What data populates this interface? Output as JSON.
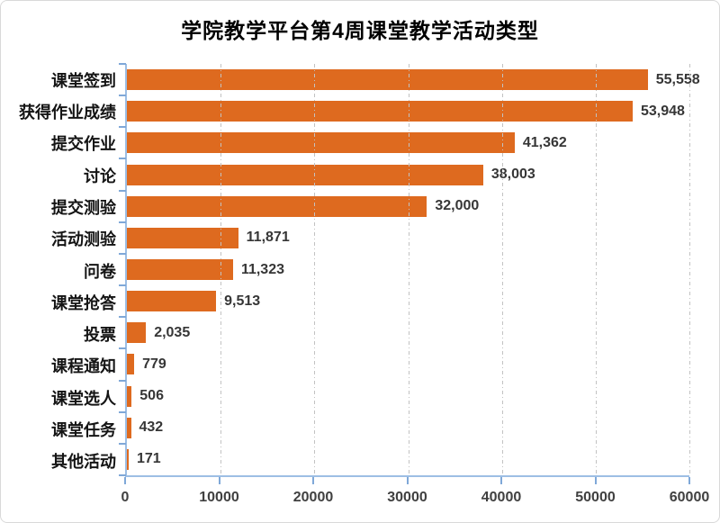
{
  "chart_data": {
    "type": "bar",
    "orientation": "horizontal",
    "title": "学院教学平台第4周课堂教学活动类型",
    "categories": [
      "课堂签到",
      "获得作业成绩",
      "提交作业",
      "讨论",
      "提交测验",
      "活动测验",
      "问卷",
      "课堂抢答",
      "投票",
      "课程通知",
      "课堂选人",
      "课堂任务",
      "其他活动"
    ],
    "values": [
      55558,
      53948,
      41362,
      38003,
      32000,
      11871,
      11323,
      9513,
      2035,
      779,
      506,
      432,
      171
    ],
    "value_labels": [
      "55,558",
      "53,948",
      "41,362",
      "38,003",
      "32,000",
      "11,871",
      "11,323",
      "9,513",
      "2,035",
      "779",
      "506",
      "432",
      "171"
    ],
    "x_axis": {
      "min": 0,
      "max": 60000,
      "ticks": [
        0,
        10000,
        20000,
        30000,
        40000,
        50000,
        60000
      ],
      "tick_labels": [
        "0",
        "10000",
        "20000",
        "30000",
        "40000",
        "50000",
        "60000"
      ]
    },
    "grid": "vertical dash-dot gridlines at each x tick",
    "legend": "none",
    "colors": {
      "bar": "#de6a1f",
      "axis_line": "#9dbee4",
      "axis_tick": "#7fa8d8",
      "gridline": "#c2c2c2",
      "title_text": "#000000",
      "category_text": "#141414",
      "value_text": "#363636",
      "axis_label_text": "#404040"
    }
  }
}
